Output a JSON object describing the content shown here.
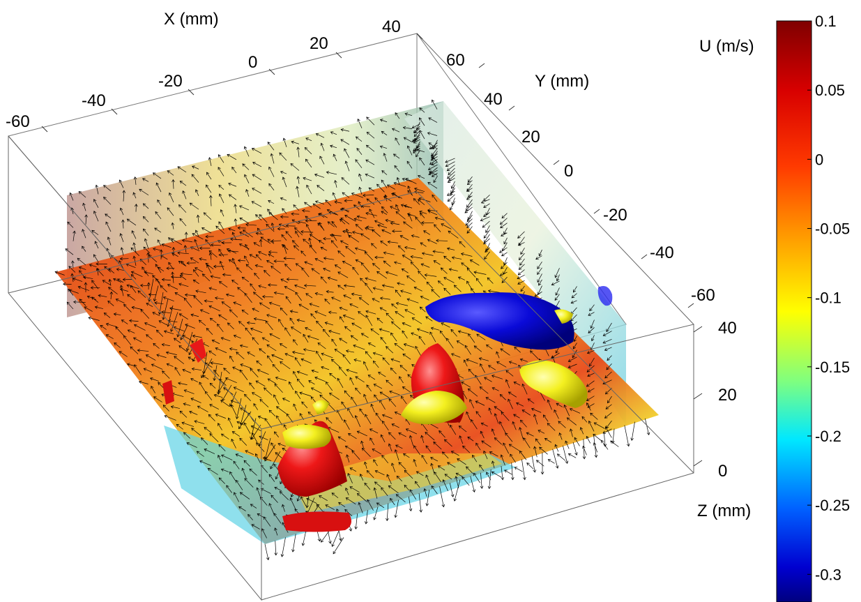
{
  "chart_data": {
    "type": "3d-volume",
    "axes": {
      "x": {
        "label": "X (mm)",
        "ticks": [
          "-60",
          "-40",
          "-20",
          "0",
          "20",
          "40"
        ]
      },
      "y": {
        "label": "Y (mm)",
        "ticks": [
          "60",
          "40",
          "20",
          "0",
          "-20",
          "-40",
          "-60"
        ]
      },
      "z": {
        "label": "Z (mm)",
        "ticks": [
          "40",
          "20",
          "0"
        ]
      }
    },
    "colorbar": {
      "label": "U (m/s)",
      "range": [
        -0.32,
        0.1
      ],
      "ticks": [
        "0.1",
        "0.05",
        "0",
        "-0.05",
        "-0.1",
        "-0.15",
        "-0.2",
        "-0.25",
        "-0.3"
      ],
      "colormap": "jet"
    },
    "isosurfaces": [
      {
        "color": "#e01010",
        "meaning": "positive U"
      },
      {
        "color": "#f0f020",
        "meaning": "intermediate"
      },
      {
        "color": "#0a0ad0",
        "meaning": "negative U"
      }
    ],
    "vectors": "velocity arrows (black) on the floor plane and the back wall plane"
  }
}
